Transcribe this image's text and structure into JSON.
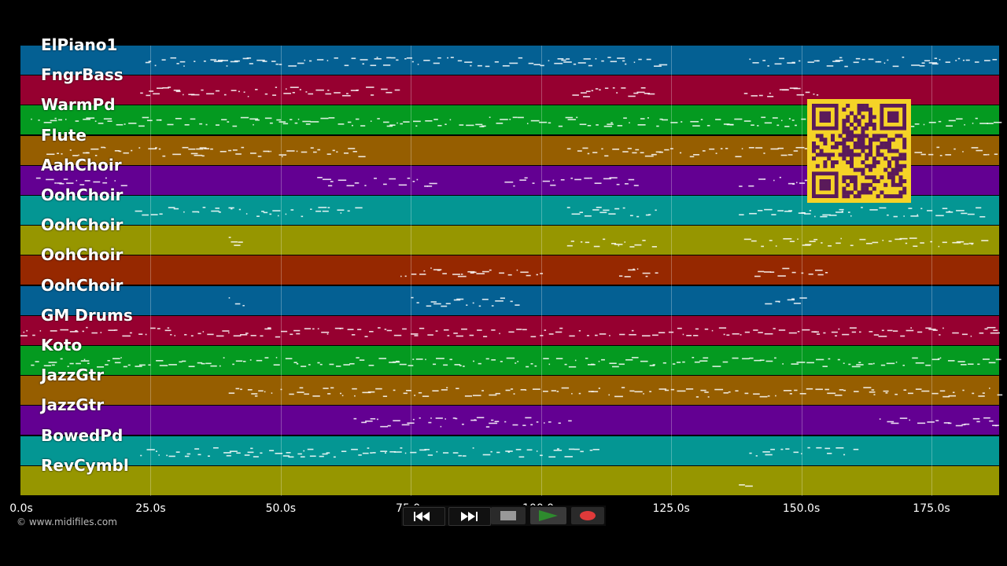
{
  "tracks": [
    {
      "label": "ElPiano1",
      "color": "#046093"
    },
    {
      "label": "FngrBass",
      "color": "#960030"
    },
    {
      "label": "WarmPd",
      "color": "#049a20"
    },
    {
      "label": "Flute",
      "color": "#965e00"
    },
    {
      "label": "AahChoir",
      "color": "#630092"
    },
    {
      "label": "OohChoir",
      "color": "#049693"
    },
    {
      "label": "OohChoir",
      "color": "#969600"
    },
    {
      "label": "OohChoir",
      "color": "#962800"
    },
    {
      "label": "OohChoir",
      "color": "#046093"
    },
    {
      "label": "GM Drums",
      "color": "#960030"
    },
    {
      "label": "Koto",
      "color": "#049a20"
    },
    {
      "label": "JazzGtr",
      "color": "#965e00"
    },
    {
      "label": "JazzGtr",
      "color": "#630092"
    },
    {
      "label": "BowedPd",
      "color": "#049693"
    },
    {
      "label": "RevCymbl",
      "color": "#969600"
    }
  ],
  "timeline": {
    "ticks": [
      "0.0s",
      "25.0s",
      "50.0s",
      "75.0s",
      "100.0s",
      "125.0s",
      "150.0s",
      "175.0s"
    ],
    "duration_seconds": 188
  },
  "transport": {
    "rewind_icon": "rewind-icon",
    "forward_icon": "fast-forward-icon",
    "stop_icon": "stop-icon",
    "play_icon": "play-icon",
    "record_icon": "record-icon",
    "colors": {
      "play": "#2e8a2e",
      "record": "#e03a3a",
      "stop": "#999999"
    }
  },
  "copyright": "© www.midifiles.com",
  "qr": {
    "fg": "#5a1a5a",
    "bg": "#f5d327"
  }
}
